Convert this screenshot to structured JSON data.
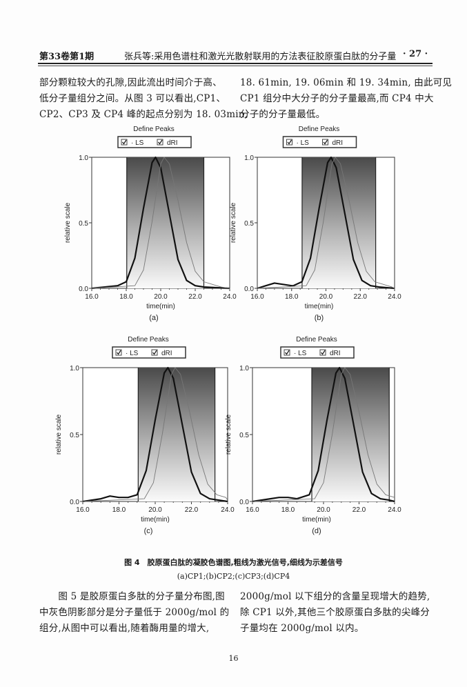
{
  "header": {
    "left": "第33卷第1期",
    "center": "张兵等:采用色谱柱和激光光散射联用的方法表征胶原蛋白肽的分子量",
    "right": "· 27 ·"
  },
  "top_text": {
    "left": [
      "部分颗粒较大的孔隙,因此流出时间介于高、",
      "低分子量组分之间。从图 3 可以看出,CP1、",
      "CP2、CP3 及 CP4 峰的起点分别为 18. 03min,"
    ],
    "right": [
      "18. 61min, 19. 06min 和 19. 34min, 由此可见",
      "CP1 组分中大分子的分子量最高,而 CP4 中大",
      "分子的分子量最低。"
    ]
  },
  "figure": {
    "caption": "图 4　胶原蛋白肽的凝胶色谱图,粗线为激光信号,细线为示差信号",
    "subcaption": "(a)CP1;(b)CP2;(c)CP3;(d)CP4"
  },
  "chart_data": [
    {
      "panel": "(a)",
      "type": "line",
      "title": "Define Peaks",
      "legend": [
        "LS",
        "dRI"
      ],
      "legend_placement": "top",
      "xlabel": "time(min)",
      "ylabel": "relative scale",
      "xlim": [
        16,
        24
      ],
      "ylim": [
        0,
        1
      ],
      "xticks": [
        "16.0",
        "18.0",
        "20.0",
        "22.0",
        "24.0"
      ],
      "yticks": [
        "0.0",
        "0.5",
        "1.0"
      ],
      "shaded_range": [
        18.03,
        22.5
      ],
      "series": [
        {
          "name": "LS",
          "style": "thick",
          "x": [
            16,
            17.5,
            18,
            18.5,
            19,
            19.5,
            19.7,
            20,
            20.5,
            21,
            21.5,
            22,
            22.5,
            24
          ],
          "y": [
            0,
            0.02,
            0.05,
            0.23,
            0.61,
            0.96,
            1,
            0.92,
            0.57,
            0.22,
            0.06,
            0.02,
            0.01,
            0
          ]
        },
        {
          "name": "dRI",
          "style": "thin",
          "x": [
            16,
            18.5,
            19,
            19.5,
            20,
            20.2,
            20.5,
            21,
            21.5,
            22,
            22.5,
            23,
            23.5,
            24
          ],
          "y": [
            0,
            0.02,
            0.14,
            0.51,
            0.95,
            1,
            0.95,
            0.67,
            0.35,
            0.13,
            0.05,
            0.03,
            0.01,
            0
          ]
        }
      ]
    },
    {
      "panel": "(b)",
      "type": "line",
      "title": "Define Peaks",
      "legend": [
        "LS",
        "dRI"
      ],
      "legend_placement": "top",
      "xlabel": "time(min)",
      "ylabel": "relative scale",
      "xlim": [
        16,
        24
      ],
      "ylim": [
        0,
        1
      ],
      "xticks": [
        "16.0",
        "18.0",
        "20.0",
        "22.0",
        "24.0"
      ],
      "yticks": [
        "0.0",
        "0.5",
        "1.0"
      ],
      "shaded_range": [
        18.61,
        22.9
      ],
      "series": [
        {
          "name": "LS",
          "style": "thick",
          "x": [
            16,
            16.5,
            17,
            17.5,
            18,
            18.1,
            18.6,
            19.1,
            19.6,
            20.1,
            20.3,
            20.6,
            21.1,
            21.6,
            22.1,
            22.6,
            23.1,
            24
          ],
          "y": [
            0,
            0.02,
            0.04,
            0.03,
            0.02,
            0.02,
            0.05,
            0.23,
            0.61,
            0.96,
            1,
            0.92,
            0.57,
            0.22,
            0.06,
            0.02,
            0.01,
            0
          ]
        },
        {
          "name": "dRI",
          "style": "thin",
          "x": [
            16,
            18.85,
            19.35,
            19.85,
            20.35,
            20.55,
            20.85,
            21.35,
            21.85,
            22.35,
            22.85,
            23.35,
            23.85,
            24
          ],
          "y": [
            0,
            0.02,
            0.14,
            0.51,
            0.95,
            1,
            0.95,
            0.67,
            0.35,
            0.13,
            0.05,
            0.03,
            0.01,
            0
          ]
        }
      ]
    },
    {
      "panel": "(c)",
      "type": "line",
      "title": "Define Peaks",
      "legend": [
        "LS",
        "dRI"
      ],
      "legend_placement": "top",
      "xlabel": "time(min)",
      "ylabel": "relative scale",
      "xlim": [
        16,
        24
      ],
      "ylim": [
        0,
        1
      ],
      "xticks": [
        "16.0",
        "18.0",
        "20.0",
        "22.0",
        "24.0"
      ],
      "yticks": [
        "0.0",
        "0.5",
        "1.0"
      ],
      "shaded_range": [
        19.06,
        23.3
      ],
      "series": [
        {
          "name": "LS",
          "style": "thick",
          "x": [
            16,
            17,
            17.5,
            18,
            18.5,
            19,
            19.5,
            20,
            20.5,
            20.7,
            21,
            21.5,
            22,
            22.5,
            23,
            23.5,
            24
          ],
          "y": [
            0,
            0.02,
            0.04,
            0.03,
            0.03,
            0.05,
            0.23,
            0.61,
            0.96,
            1,
            0.92,
            0.57,
            0.22,
            0.06,
            0.02,
            0.01,
            0
          ]
        },
        {
          "name": "dRI",
          "style": "thin",
          "x": [
            16,
            19.4,
            19.9,
            20.4,
            20.9,
            21.1,
            21.4,
            21.9,
            22.4,
            22.9,
            23.4,
            23.9,
            24
          ],
          "y": [
            0,
            0.02,
            0.14,
            0.51,
            0.95,
            1,
            0.95,
            0.67,
            0.35,
            0.13,
            0.05,
            0.03,
            0.01
          ]
        }
      ]
    },
    {
      "panel": "(d)",
      "type": "line",
      "title": "Define Peaks",
      "legend": [
        "LS",
        "dRI"
      ],
      "legend_placement": "top",
      "xlabel": "time(min)",
      "ylabel": "relative scale",
      "xlim": [
        16,
        24
      ],
      "ylim": [
        0,
        1
      ],
      "xticks": [
        "16.0",
        "18.0",
        "20.0",
        "22.0",
        "24.0"
      ],
      "yticks": [
        "0.0",
        "0.5",
        "1.0"
      ],
      "shaded_range": [
        19.34,
        23.7
      ],
      "series": [
        {
          "name": "LS",
          "style": "thick",
          "x": [
            16,
            17,
            17.5,
            18,
            18.5,
            19.2,
            19.7,
            20.2,
            20.7,
            20.9,
            21.2,
            21.7,
            22.2,
            22.7,
            23.2,
            23.7,
            24
          ],
          "y": [
            0,
            0.02,
            0.03,
            0.03,
            0.02,
            0.05,
            0.23,
            0.61,
            0.96,
            1,
            0.92,
            0.57,
            0.22,
            0.06,
            0.02,
            0.01,
            0
          ]
        },
        {
          "name": "dRI",
          "style": "thin",
          "x": [
            16,
            19.5,
            20,
            20.5,
            21,
            21.2,
            21.5,
            22,
            22.5,
            23,
            23.5,
            24
          ],
          "y": [
            0,
            0.02,
            0.14,
            0.51,
            0.95,
            1,
            0.95,
            0.67,
            0.35,
            0.13,
            0.05,
            0.03
          ]
        }
      ]
    }
  ],
  "bottom_text": {
    "left": [
      "　　图 5 是胶原蛋白多肽的分子量分布图,图",
      "中灰色阴影部分是分子量低于 2000g/mol 的",
      "组分,从图中可以看出,随着酶用量的增大,"
    ],
    "right": [
      "2000g/mol 以下组分的含量呈现增大的趋势,",
      "除 CP1 以外,其他三个胶原蛋白多肽的尖峰分",
      "子量均在 2000g/mol 以内。"
    ]
  },
  "page_number": "16"
}
